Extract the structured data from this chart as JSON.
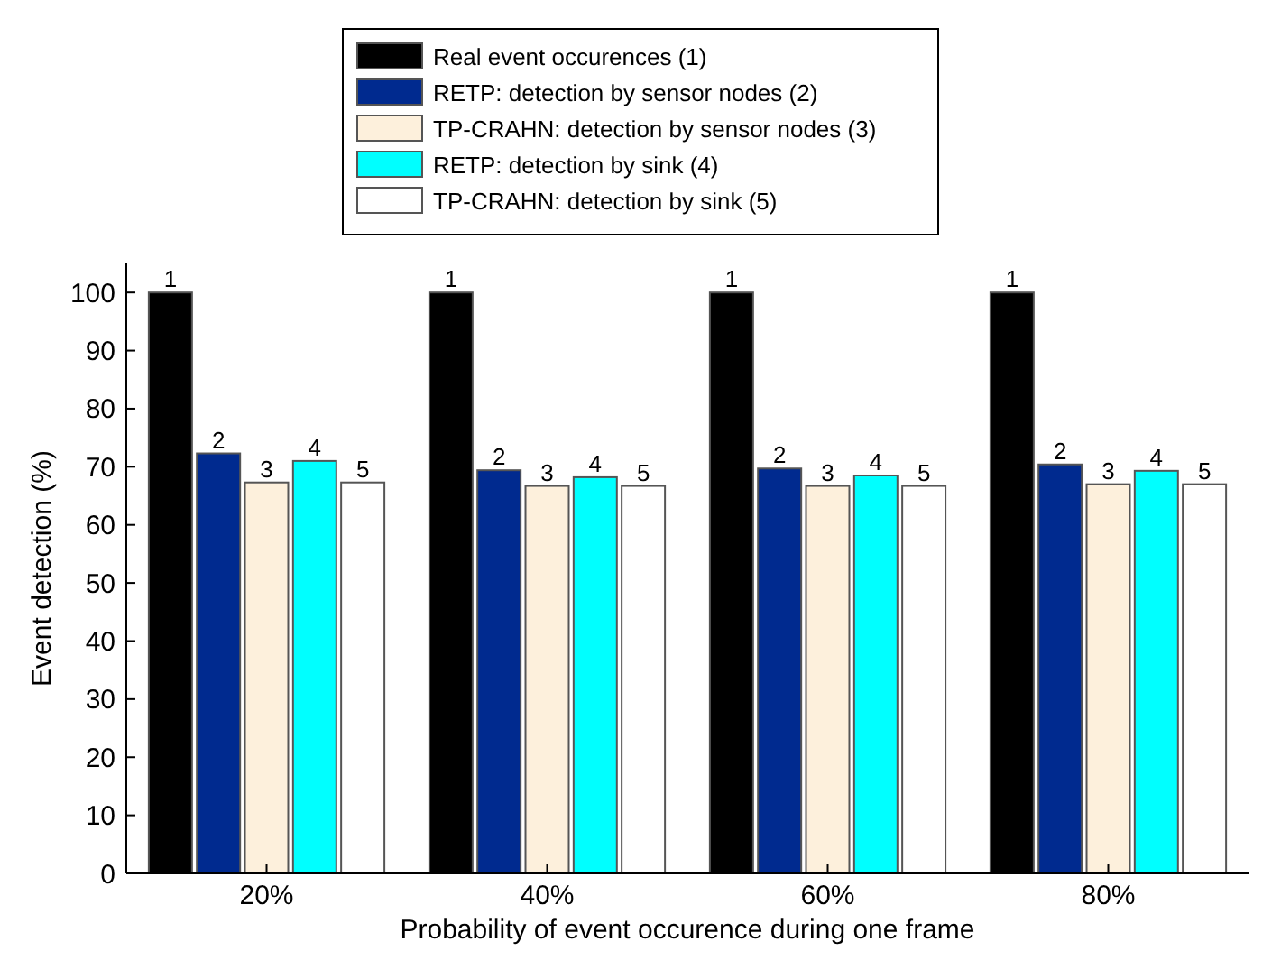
{
  "chart_data": {
    "type": "bar",
    "xlabel": "Probability of event occurence during one frame",
    "ylabel": "Event detection (%)",
    "categories": [
      "20%",
      "40%",
      "60%",
      "80%"
    ],
    "series": [
      {
        "name": "Real event occurences (1)",
        "color": "#000000",
        "values": [
          100,
          100,
          100,
          100
        ]
      },
      {
        "name": "RETP: detection by sensor nodes (2)",
        "color": "#002a8f",
        "values": [
          72.3,
          69.4,
          69.7,
          70.4
        ]
      },
      {
        "name": "TP-CRAHN: detection by sensor nodes (3)",
        "color": "#fdf0dc",
        "values": [
          67.3,
          66.7,
          66.7,
          67
        ]
      },
      {
        "name": "RETP: detection by sink (4)",
        "color": "#00ffff",
        "values": [
          71,
          68.2,
          68.5,
          69.3
        ]
      },
      {
        "name": "TP-CRAHN: detection by sink (5)",
        "color": "#ffffff",
        "values": [
          67.3,
          66.7,
          66.7,
          67
        ]
      }
    ],
    "annotations": [
      "1",
      "1",
      "1",
      "1",
      "2",
      "2",
      "2",
      "2",
      "3",
      "3",
      "3",
      "3",
      "4",
      "4",
      "4",
      "4",
      "5",
      "5",
      "5",
      "5"
    ],
    "ylim": [
      0,
      105
    ],
    "yticks": [
      0,
      10,
      20,
      30,
      40,
      50,
      60,
      70,
      80,
      90,
      100
    ],
    "legend": "top",
    "grid": false
  }
}
